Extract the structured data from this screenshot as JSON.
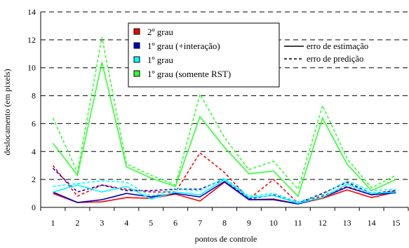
{
  "chart_data": {
    "type": "line",
    "title": "",
    "xlabel": "pontos de controle",
    "ylabel": "deslocamento (em pixels)",
    "x": [
      1,
      2,
      3,
      4,
      5,
      6,
      7,
      8,
      9,
      10,
      11,
      12,
      13,
      14,
      15
    ],
    "x_tick_labels": [
      "1",
      "2",
      "3",
      "4",
      "5",
      "6",
      "7",
      "8",
      "9",
      "10",
      "11",
      "12",
      "13",
      "14",
      "15"
    ],
    "ylim": [
      0,
      14
    ],
    "y_ticks": [
      0,
      2,
      4,
      6,
      8,
      10,
      12,
      14
    ],
    "y_tick_labels": [
      "0",
      "2",
      "4",
      "6",
      "8",
      "10",
      "12",
      "14"
    ],
    "grid": "horizontal dashed",
    "legend_position": "top-right",
    "series": [
      {
        "name": "2º grau",
        "color": "#ff0000",
        "estimation": [
          1.0,
          0.35,
          0.4,
          0.7,
          0.65,
          0.95,
          0.45,
          1.8,
          0.55,
          0.6,
          0.25,
          0.65,
          1.25,
          0.7,
          1.1
        ],
        "prediction": [
          3.0,
          0.8,
          1.6,
          1.3,
          1.1,
          1.1,
          3.9,
          2.5,
          0.6,
          2.0,
          0.3,
          0.8,
          1.5,
          0.9,
          1.2
        ]
      },
      {
        "name": "1º grau (+interação)",
        "color": "#0000cc",
        "estimation": [
          1.1,
          0.35,
          0.55,
          1.0,
          0.75,
          1.0,
          0.75,
          1.85,
          0.55,
          0.55,
          0.25,
          0.7,
          1.45,
          0.9,
          1.05
        ],
        "prediction": [
          2.8,
          1.1,
          1.6,
          1.2,
          1.2,
          1.3,
          1.3,
          2.0,
          0.6,
          0.9,
          0.3,
          1.0,
          1.8,
          1.0,
          1.2
        ]
      },
      {
        "name": "1º grau",
        "color": "#00ffff",
        "estimation": [
          1.1,
          1.6,
          1.1,
          1.5,
          0.6,
          1.1,
          0.9,
          2.0,
          0.7,
          0.85,
          0.3,
          0.7,
          1.65,
          1.0,
          1.1
        ],
        "prediction": [
          1.5,
          1.7,
          1.9,
          1.8,
          0.8,
          1.3,
          1.2,
          2.1,
          0.8,
          1.0,
          0.4,
          0.9,
          1.9,
          1.2,
          1.3
        ]
      },
      {
        "name": "1º grau (somente RST)",
        "color": "#33ff33",
        "estimation": [
          4.6,
          2.3,
          10.4,
          2.9,
          2.1,
          1.5,
          6.5,
          4.3,
          2.4,
          2.6,
          0.8,
          6.4,
          3.1,
          1.2,
          2.0
        ],
        "prediction": [
          6.4,
          2.5,
          12.2,
          3.1,
          2.3,
          1.6,
          8.1,
          5.0,
          2.7,
          3.3,
          1.3,
          7.3,
          3.5,
          1.4,
          2.3
        ]
      }
    ],
    "line_style_legend": [
      {
        "label": "erro de estimação",
        "style": "solid"
      },
      {
        "label": "erro de predição",
        "style": "dashed"
      }
    ]
  }
}
